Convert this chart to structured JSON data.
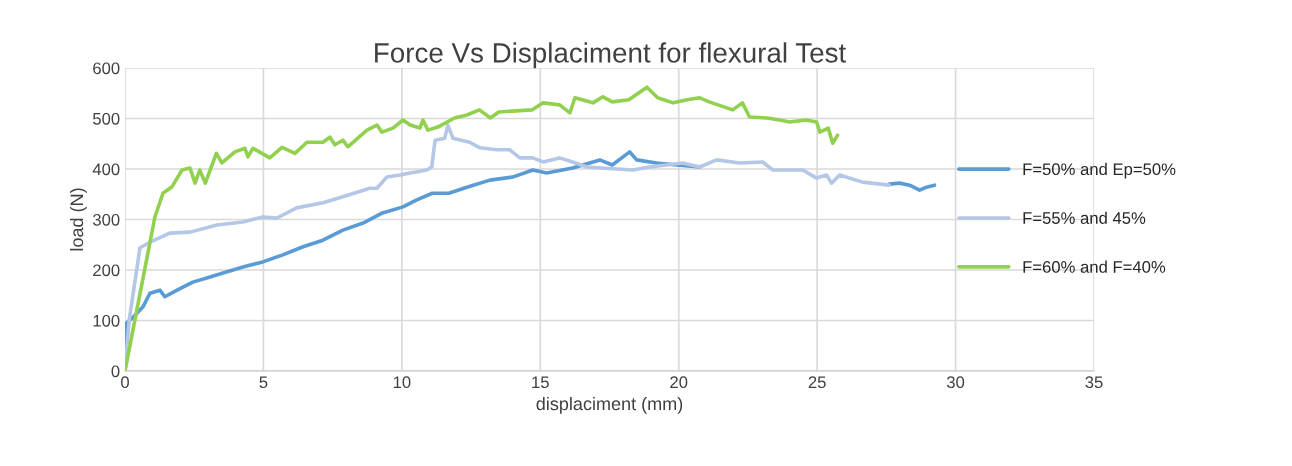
{
  "chart_data": {
    "type": "line",
    "title": "Force Vs Displaciment for flexural Test",
    "xlabel": "displaciment (mm)",
    "ylabel": "load (N)",
    "xlim": [
      0,
      35
    ],
    "xticks": [
      0,
      5,
      10,
      15,
      20,
      25,
      30,
      35
    ],
    "ylim": [
      0,
      600
    ],
    "yticks": [
      0,
      100,
      200,
      300,
      400,
      500,
      600
    ],
    "grid": true,
    "legend": "right",
    "series": [
      {
        "name": "F=50% and Ep=50%",
        "color": "#5b9bd5",
        "x": [
          0,
          0.06,
          0.3,
          0.65,
          0.9,
          1.26,
          1.44,
          1.88,
          2.45,
          3.07,
          3.54,
          4.26,
          4.98,
          5.7,
          6.43,
          7.15,
          7.87,
          8.6,
          9.3,
          10.04,
          10.54,
          11.1,
          11.7,
          12.35,
          13.18,
          14.0,
          14.73,
          15.23,
          16.17,
          17.15,
          17.6,
          18.23,
          18.48,
          19.2,
          19.93,
          20.76,
          24.0,
          27.6,
          27.98,
          28.34,
          28.7,
          28.95,
          29.24
        ],
        "values": [
          0,
          95,
          107,
          127,
          154,
          160,
          147,
          160,
          176,
          186,
          194,
          206,
          216,
          230,
          246,
          259,
          279,
          293,
          313,
          325,
          339,
          352,
          352,
          364,
          378,
          384,
          398,
          392,
          402,
          418,
          408,
          434,
          418,
          412,
          408,
          404,
          null,
          370,
          372,
          368,
          358,
          364,
          368
        ]
      },
      {
        "name": "F=55% and 45%",
        "color": "#b4c7e7",
        "x": [
          0,
          0.15,
          0.54,
          0.9,
          1.62,
          2.35,
          3.32,
          4.26,
          4.98,
          5.49,
          6.2,
          7.15,
          7.87,
          8.84,
          9.1,
          9.46,
          9.93,
          10.3,
          10.9,
          11.08,
          11.2,
          11.55,
          11.66,
          11.84,
          12.45,
          12.82,
          13.43,
          13.9,
          14.26,
          14.73,
          15.1,
          15.7,
          16.17,
          16.68,
          18.34,
          18.95,
          20.14,
          20.76,
          21.37,
          22.2,
          23.03,
          23.4,
          24.48,
          24.98,
          25.34,
          25.52,
          25.81,
          26.64,
          27.6
        ],
        "values": [
          0,
          100,
          244,
          255,
          273,
          275,
          289,
          295,
          305,
          303,
          323,
          333,
          345,
          362,
          362,
          384,
          388,
          392,
          398,
          404,
          457,
          461,
          487,
          461,
          453,
          442,
          438,
          438,
          422,
          422,
          414,
          422,
          414,
          404,
          398,
          404,
          412,
          404,
          418,
          412,
          414,
          398,
          398,
          382,
          388,
          372,
          388,
          374,
          368
        ]
      },
      {
        "name": "F=60% and F=40%",
        "color": "#92d050",
        "x": [
          0,
          1.08,
          1.37,
          1.7,
          2.06,
          2.35,
          2.53,
          2.7,
          2.9,
          3.3,
          3.5,
          3.97,
          4.33,
          4.44,
          4.62,
          5.23,
          5.67,
          6.14,
          6.57,
          7.15,
          7.4,
          7.58,
          7.87,
          8.05,
          8.74,
          9.1,
          9.28,
          9.68,
          10.04,
          10.3,
          10.65,
          10.76,
          10.94,
          11.3,
          11.9,
          12.35,
          12.8,
          13.2,
          13.5,
          14.7,
          15.1,
          15.7,
          16.07,
          16.25,
          16.9,
          17.26,
          17.6,
          18.2,
          18.85,
          19.24,
          19.8,
          20.3,
          20.76,
          21.1,
          21.95,
          22.3,
          22.56,
          23.2,
          23.65,
          24.0,
          24.6,
          24.98,
          25.1,
          25.4,
          25.56,
          25.74
        ],
        "values": [
          0,
          305,
          352,
          365,
          398,
          402,
          372,
          398,
          372,
          431,
          412,
          434,
          441,
          424,
          441,
          422,
          443,
          431,
          453,
          453,
          463,
          448,
          457,
          444,
          477,
          487,
          473,
          481,
          497,
          487,
          481,
          497,
          477,
          483,
          501,
          507,
          517,
          501,
          513,
          517,
          531,
          527,
          511,
          541,
          531,
          543,
          533,
          537,
          562,
          541,
          531,
          537,
          541,
          533,
          517,
          531,
          503,
          501,
          497,
          493,
          497,
          493,
          473,
          481,
          451,
          467
        ]
      }
    ]
  }
}
